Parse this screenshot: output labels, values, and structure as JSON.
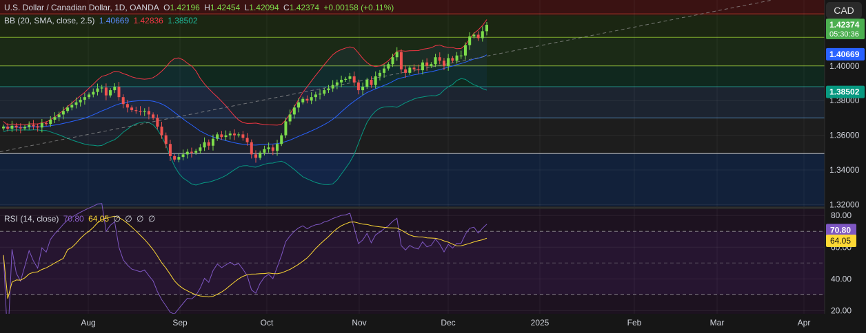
{
  "header": {
    "symbol": "U.S. Dollar / Canadian Dollar, 1D, OANDA",
    "open_label": "O",
    "open": "1.42196",
    "high_label": "H",
    "high": "1.42454",
    "low_label": "L",
    "low": "1.42094",
    "close_label": "C",
    "close": "1.42374",
    "change": "+0.00158 (+0.11%)"
  },
  "bb_legend": {
    "label": "BB (20, SMA, close, 2.5)",
    "basis": "1.40669",
    "upper": "1.42836",
    "lower": "1.38502"
  },
  "rsi_legend": {
    "label": "RSI (14, close)",
    "rsi": "70.80",
    "ma": "64.05",
    "zeros": [
      "∅",
      "∅",
      "∅",
      "∅"
    ]
  },
  "currency_button": "CAD",
  "price_axis": {
    "ticks": [
      "1.32000",
      "1.34000",
      "1.36000",
      "1.38000",
      "1.40000"
    ],
    "current_price": "1.42374",
    "countdown": "05:30:36",
    "basis_label": "1.40669",
    "lower_label": "1.38502"
  },
  "rsi_axis": {
    "ticks": [
      "20.00",
      "40.00",
      "60.00",
      "80.00"
    ],
    "rsi_label": "70.80",
    "ma_label": "64.05"
  },
  "time_axis": [
    "Aug",
    "Sep",
    "Oct",
    "Nov",
    "Dec",
    "2025",
    "Feb",
    "Mar",
    "Apr"
  ],
  "colors": {
    "bull": "#26a69a",
    "bull_body": "#7ddc4b",
    "bear": "#ef5350",
    "bb_upper": "#f23645",
    "bb_basis": "#2962ff",
    "bb_lower": "#089981",
    "rsi": "#7e57c2",
    "rsi_ma": "#fdd835"
  },
  "chart_data": {
    "type": "candlestick",
    "series": [
      {
        "name": "USDCAD",
        "kind": "ohlc",
        "close": [
          1.365,
          1.3638,
          1.3655,
          1.3645,
          1.364,
          1.3648,
          1.366,
          1.3652,
          1.3645,
          1.367,
          1.3665,
          1.369,
          1.3705,
          1.372,
          1.374,
          1.376,
          1.3775,
          1.379,
          1.3805,
          1.382,
          1.3835,
          1.385,
          1.387,
          1.3875,
          1.383,
          1.386,
          1.388,
          1.382,
          1.378,
          1.376,
          1.3745,
          1.374,
          1.3735,
          1.374,
          1.372,
          1.37,
          1.365,
          1.36,
          1.355,
          1.348,
          1.346,
          1.3475,
          1.349,
          1.3505,
          1.35,
          1.351,
          1.353,
          1.356,
          1.354,
          1.358,
          1.3605,
          1.359,
          1.36,
          1.361,
          1.36,
          1.3605,
          1.3585,
          1.356,
          1.349,
          1.347,
          1.35,
          1.352,
          1.353,
          1.351,
          1.355,
          1.36,
          1.368,
          1.372,
          1.376,
          1.379,
          1.381,
          1.38,
          1.382,
          1.3835,
          1.384,
          1.386,
          1.387,
          1.389,
          1.3905,
          1.392,
          1.3925,
          1.394,
          1.3905,
          1.386,
          1.388,
          1.392,
          1.389,
          1.394,
          1.396,
          1.3985,
          1.401,
          1.405,
          1.408,
          1.398,
          1.396,
          1.399,
          1.398,
          1.3975,
          1.402,
          1.4,
          1.401,
          1.405,
          1.403,
          1.4,
          1.4045,
          1.403,
          1.406,
          1.406,
          1.412,
          1.417,
          1.418,
          1.416,
          1.42,
          1.4237
        ]
      },
      {
        "name": "BB Upper",
        "values": [
          1.42836
        ]
      },
      {
        "name": "BB Basis",
        "values": [
          1.40669
        ]
      },
      {
        "name": "BB Lower",
        "values": [
          1.38502
        ]
      },
      {
        "name": "RSI",
        "values": [
          70.8
        ]
      },
      {
        "name": "RSI MA",
        "values": [
          64.05
        ]
      }
    ],
    "price_range": [
      1.319,
      1.438
    ],
    "rsi_range": [
      18,
      84
    ],
    "grid": true
  }
}
